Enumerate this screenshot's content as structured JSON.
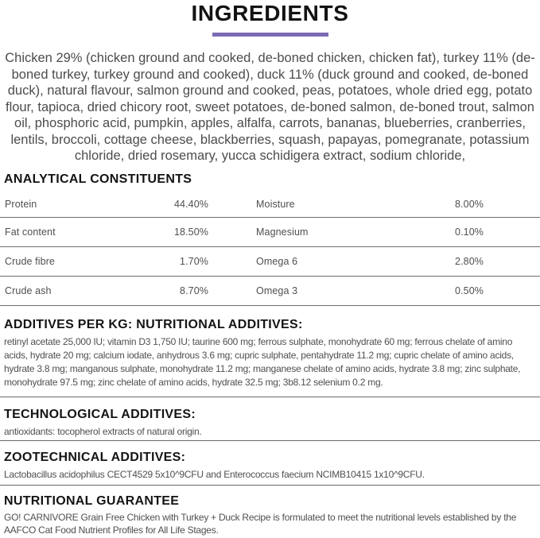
{
  "page": {
    "title": "INGREDIENTS",
    "accent_color": "#7c6bb4"
  },
  "ingredients": {
    "text": "Chicken 29% (chicken ground and cooked, de-boned chicken, chicken fat), turkey 11% (de-boned turkey, turkey ground and cooked), duck 11% (duck ground and cooked, de-boned duck), natural flavour, salmon ground and cooked, peas, potatoes, whole dried egg, potato flour, tapioca, dried chicory root, sweet potatoes, de-boned salmon, de-boned trout, salmon oil, phosphoric acid, pumpkin, apples, alfalfa, carrots, bananas, blueberries, cranberries, lentils, broccoli, cottage cheese, blackberries, squash, papayas, pomegranate, potassium chloride, dried rosemary, yucca schidigera extract, sodium chloride,"
  },
  "analytical_constituents": {
    "heading": "ANALYTICAL CONSTITUENTS",
    "rows": [
      {
        "left_label": "Protein",
        "left_value": "44.40%",
        "right_label": "Moisture",
        "right_value": "8.00%"
      },
      {
        "left_label": "Fat content",
        "left_value": "18.50%",
        "right_label": "Magnesium",
        "right_value": "0.10%"
      },
      {
        "left_label": "Crude fibre",
        "left_value": "1.70%",
        "right_label": "Omega 6",
        "right_value": "2.80%"
      },
      {
        "left_label": "Crude ash",
        "left_value": "8.70%",
        "right_label": "Omega 3",
        "right_value": "0.50%"
      }
    ]
  },
  "nutritional_additives": {
    "heading": "ADDITIVES PER KG: NUTRITIONAL ADDITIVES:",
    "text": "retinyl acetate 25,000 IU; vitamin D3 1,750 IU; taurine 600 mg; ferrous sulphate, monohydrate 60 mg; ferrous chelate of amino acids, hydrate 20 mg; calcium iodate, anhydrous 3.6 mg; cupric sulphate, pentahydrate 11.2 mg; cupric chelate of amino acids, hydrate 3.8 mg; manganous sulphate, monohydrate 11.2 mg; manganese chelate of amino acids, hydrate 3.8 mg; zinc sulphate, monohydrate 97.5 mg; zinc chelate of amino acids, hydrate 32.5 mg; 3b8.12 selenium 0.2 mg."
  },
  "technological_additives": {
    "heading": "TECHNOLOGICAL ADDITIVES:",
    "text": "antioxidants: tocopherol extracts of natural origin."
  },
  "zootechnical_additives": {
    "heading": "ZOOTECHNICAL ADDITIVES:",
    "text": "Lactobacillus acidophilus CECT4529 5x10^9CFU and Enterococcus faecium NCIMB10415 1x10^9CFU."
  },
  "nutritional_guarantee": {
    "heading": "NUTRITIONAL GUARANTEE",
    "text": "GO! CARNIVORE Grain Free Chicken with Turkey + Duck Recipe is formulated to meet the nutritional levels established by the AAFCO Cat Food Nutrient Profiles for All Life Stages."
  }
}
